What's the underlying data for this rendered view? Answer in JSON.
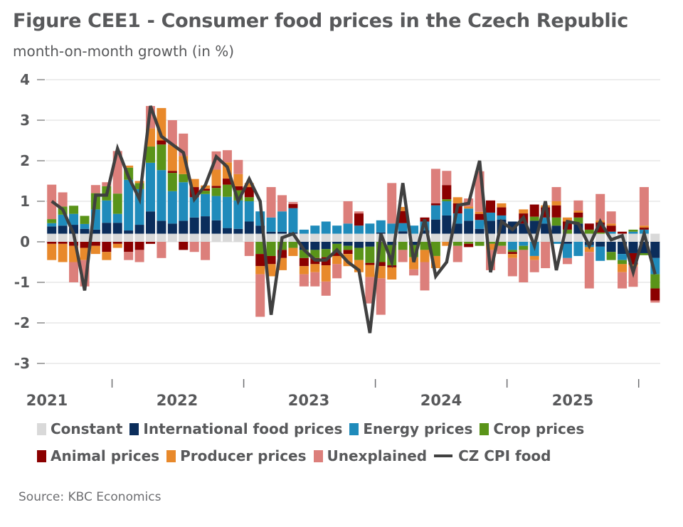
{
  "header": {
    "title": "Figure CEE1 - Consumer food prices in the Czech Republic",
    "subtitle": "month-on-month growth (in %)"
  },
  "source": "Source: KBC Economics",
  "chart_data": {
    "type": "bar",
    "stacked": true,
    "title": "Figure CEE1 - Consumer food prices in the Czech Republic",
    "subtitle": "month-on-month growth (in %)",
    "xlabel": "",
    "ylabel": "",
    "ylim": [
      -3,
      4
    ],
    "yticks": [
      4,
      3,
      2,
      1,
      0,
      -1,
      -2,
      -3
    ],
    "ytick_labels": [
      "4",
      "3",
      "2",
      "1",
      "0",
      "-1",
      "-2",
      "-3"
    ],
    "xtick_labels": [
      "2021",
      "2022",
      "2023",
      "2024",
      "2025"
    ],
    "grid": true,
    "legend_position": "bottom",
    "x_start": "2021-01",
    "months": 56,
    "colors": {
      "constant": "#d9d9d9",
      "intl": "#0b2d5b",
      "energy": "#1f8bbb",
      "crop": "#5a9419",
      "animal": "#8b0000",
      "producer": "#e8892b",
      "unexplained": "#dc7f7b",
      "cpi": "#404040"
    },
    "legend": [
      {
        "key": "constant",
        "label": "Constant"
      },
      {
        "key": "intl",
        "label": "International food prices"
      },
      {
        "key": "energy",
        "label": "Energy prices"
      },
      {
        "key": "crop",
        "label": "Crop prices"
      },
      {
        "key": "animal",
        "label": "Animal prices"
      },
      {
        "key": "producer",
        "label": "Producer prices"
      },
      {
        "key": "unexplained",
        "label": "Unexplained"
      },
      {
        "key": "cpi",
        "label": "CZ CPI food",
        "type": "line"
      }
    ],
    "series": [
      {
        "name": "Constant",
        "key": "constant",
        "values": [
          0.2,
          0.2,
          0.2,
          0.2,
          0.2,
          0.2,
          0.2,
          0.2,
          0.2,
          0.2,
          0.2,
          0.2,
          0.2,
          0.2,
          0.2,
          0.2,
          0.2,
          0.2,
          0.2,
          0.2,
          0.2,
          0.2,
          0.2,
          0.2,
          0.2,
          0.2,
          0.2,
          0.2,
          0.2,
          0.2,
          0.2,
          0.2,
          0.2,
          0.2,
          0.2,
          0.2,
          0.2,
          0.2,
          0.2,
          0.2,
          0.2,
          0.2,
          0.2,
          0.2,
          0.2,
          0.2,
          0.2,
          0.2,
          0.2,
          0.2,
          0.2,
          0.2,
          0.2,
          0.2,
          0.2,
          0.2
        ]
      },
      {
        "name": "International food prices",
        "key": "intl",
        "values": [
          0.18,
          0.2,
          0.22,
          0.12,
          0.1,
          0.27,
          0.27,
          0.08,
          0.22,
          0.55,
          0.32,
          0.25,
          0.32,
          0.4,
          0.43,
          0.33,
          0.14,
          0.12,
          0.3,
          0.2,
          0.05,
          0.05,
          0.03,
          -0.2,
          -0.2,
          -0.18,
          -0.05,
          -0.1,
          -0.15,
          -0.12,
          0.03,
          -0.08,
          0.06,
          -0.08,
          0.08,
          0.35,
          0.45,
          0.25,
          0.32,
          0.12,
          0.32,
          0.35,
          0.3,
          0.25,
          0.32,
          0.25,
          0.2,
          -0.05,
          0.25,
          -0.08,
          -0.12,
          -0.25,
          -0.3,
          -0.28,
          -0.28,
          -0.4
        ]
      },
      {
        "name": "Energy prices",
        "key": "energy",
        "values": [
          0.08,
          0.27,
          0.27,
          0.12,
          0.5,
          0.55,
          0.22,
          1.25,
          0.88,
          1.2,
          1.25,
          0.8,
          0.95,
          0.5,
          0.55,
          0.6,
          0.77,
          0.7,
          0.5,
          0.35,
          0.35,
          0.5,
          0.6,
          0.1,
          0.2,
          0.3,
          0.2,
          0.25,
          0.2,
          0.25,
          0.3,
          0.25,
          0.2,
          0.2,
          0.22,
          0.35,
          0.35,
          0.25,
          0.3,
          0.22,
          0.2,
          0.1,
          -0.2,
          -0.1,
          -0.35,
          0.15,
          -0.05,
          -0.35,
          -0.35,
          -0.05,
          -0.35,
          0.05,
          -0.15,
          0.05,
          0.1,
          -0.4
        ]
      },
      {
        "name": "Crop prices",
        "key": "crop",
        "values": [
          0.1,
          0.2,
          0.2,
          0.2,
          0.4,
          0.35,
          0.5,
          0.3,
          0.15,
          0.4,
          0.63,
          0.45,
          0.2,
          0.0,
          0.08,
          0.2,
          0.3,
          0.25,
          0.1,
          -0.3,
          -0.35,
          -0.2,
          -0.15,
          -0.2,
          -0.2,
          -0.2,
          -0.2,
          -0.1,
          -0.3,
          -0.4,
          -0.5,
          -0.5,
          -0.2,
          -0.3,
          -0.2,
          -0.35,
          0.05,
          -0.1,
          -0.05,
          -0.1,
          -0.05,
          -0.1,
          -0.05,
          -0.1,
          0.1,
          0.0,
          0.2,
          0.1,
          0.15,
          0.1,
          0.03,
          -0.2,
          -0.1,
          0.05,
          -0.05,
          -0.35
        ]
      },
      {
        "name": "Animal prices",
        "key": "animal",
        "values": [
          -0.05,
          -0.05,
          -0.1,
          -0.15,
          -0.1,
          -0.25,
          -0.05,
          -0.25,
          -0.2,
          -0.05,
          0.1,
          0.05,
          -0.2,
          0.25,
          0.05,
          0.05,
          0.15,
          0.1,
          0.25,
          -0.3,
          -0.2,
          -0.2,
          0.1,
          -0.2,
          -0.15,
          -0.2,
          -0.1,
          -0.1,
          0.3,
          -0.05,
          -0.1,
          -0.05,
          0.3,
          0.0,
          0.1,
          0.05,
          0.35,
          0.25,
          -0.08,
          0.15,
          0.3,
          0.2,
          -0.05,
          0.25,
          0.3,
          0.25,
          0.3,
          0.2,
          0.12,
          0.15,
          0.25,
          0.15,
          0.05,
          -0.28,
          0.05,
          -0.3
        ]
      },
      {
        "name": "Producer prices",
        "key": "producer",
        "values": [
          -0.4,
          -0.45,
          -0.4,
          -0.3,
          -0.2,
          -0.2,
          -0.1,
          0.05,
          0.05,
          0.45,
          0.8,
          0.65,
          0.45,
          0.2,
          0.08,
          0.4,
          0.4,
          0.3,
          0.1,
          -0.2,
          -0.3,
          -0.3,
          -0.2,
          -0.2,
          -0.2,
          -0.4,
          -0.2,
          -0.3,
          -0.3,
          -0.3,
          -0.3,
          -0.3,
          0.1,
          -0.3,
          -0.3,
          -0.3,
          -0.1,
          0.15,
          0.05,
          0.05,
          -0.15,
          0.1,
          -0.1,
          0.1,
          -0.1,
          0.05,
          0.1,
          0.1,
          0.05,
          -0.12,
          0.05,
          0.05,
          -0.2,
          -0.05,
          0.05,
          0.0
        ]
      },
      {
        "name": "Unexplained",
        "key": "unexplained",
        "values": [
          0.85,
          0.35,
          -0.5,
          -0.65,
          0.2,
          0.1,
          1.05,
          -0.2,
          -0.3,
          0.55,
          -0.4,
          0.6,
          0.55,
          -0.25,
          -0.45,
          0.45,
          0.3,
          0.35,
          -0.35,
          -1.05,
          0.75,
          0.4,
          0.05,
          -0.3,
          -0.35,
          -0.35,
          -0.35,
          0.55,
          0.05,
          -0.65,
          -0.9,
          1.0,
          -0.3,
          -0.15,
          -0.7,
          0.85,
          0.35,
          -0.4,
          0.2,
          1.0,
          -0.5,
          -0.2,
          -0.45,
          -0.8,
          -0.3,
          -0.65,
          0.35,
          -0.15,
          0.25,
          -0.9,
          0.65,
          0.3,
          -0.4,
          -0.5,
          0.95,
          -0.05
        ]
      },
      {
        "name": "CZ CPI food",
        "key": "cpi",
        "type": "line",
        "values": [
          1.0,
          0.8,
          0.2,
          -1.2,
          1.15,
          1.15,
          2.3,
          1.6,
          1.05,
          3.35,
          2.6,
          2.4,
          2.2,
          1.05,
          1.4,
          2.1,
          1.85,
          1.0,
          1.55,
          1.0,
          -1.8,
          0.1,
          0.2,
          -0.2,
          -0.45,
          -0.45,
          -0.2,
          -0.5,
          -0.7,
          -2.25,
          0.2,
          -0.5,
          1.45,
          -0.5,
          0.55,
          -0.85,
          -0.5,
          0.9,
          0.95,
          2.0,
          -0.75,
          0.5,
          0.3,
          0.6,
          -0.1,
          1.0,
          -0.7,
          0.5,
          0.45,
          -0.1,
          0.5,
          0.05,
          0.15,
          -0.75,
          0.2,
          -0.8
        ]
      }
    ]
  }
}
